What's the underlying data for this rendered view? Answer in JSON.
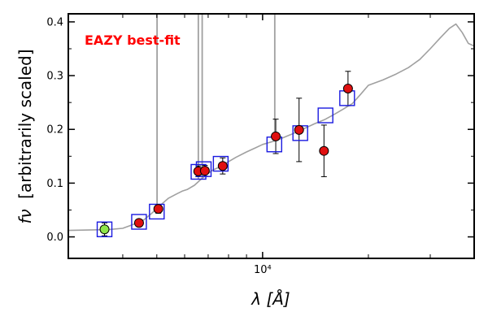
{
  "chart_data": {
    "type": "scatter",
    "title": "",
    "annotation": "EAZY best-fit",
    "xlabel": "λ [Å]",
    "ylabel_symbol": "fν",
    "ylabel_text": "[arbitrarily scaled]",
    "x_scale": "log",
    "xlim": [
      2800,
      40000
    ],
    "ylim": [
      -0.04,
      0.415
    ],
    "x_tick_labels": [
      {
        "value": 10000,
        "label": "10⁴"
      }
    ],
    "y_ticks": [
      0.0,
      0.1,
      0.2,
      0.3,
      0.4
    ],
    "y_tick_labels": [
      "0.0",
      "0.1",
      "0.2",
      "0.3",
      "0.4"
    ],
    "x_minor_ticks": [
      4000,
      5000,
      6000,
      7000,
      8000,
      9000,
      20000,
      30000
    ],
    "colors": {
      "template": "#a0a0a0",
      "model_box": "#1a1ae0",
      "detection": "#e01010",
      "highlight": "#8ee64a",
      "annotation": "#ff0000"
    },
    "template_spectrum": {
      "name": "best-fit template",
      "points": [
        [
          2800,
          0.012
        ],
        [
          3300,
          0.013
        ],
        [
          3700,
          0.014
        ],
        [
          4000,
          0.016
        ],
        [
          4200,
          0.021
        ],
        [
          4400,
          0.026
        ],
        [
          4600,
          0.032
        ],
        [
          4800,
          0.042
        ],
        [
          4950,
          0.05
        ],
        [
          5100,
          0.058
        ],
        [
          5400,
          0.072
        ],
        [
          5700,
          0.08
        ],
        [
          5900,
          0.085
        ],
        [
          6100,
          0.088
        ],
        [
          6400,
          0.096
        ],
        [
          6700,
          0.108
        ],
        [
          7000,
          0.118
        ],
        [
          7200,
          0.124
        ],
        [
          7600,
          0.131
        ],
        [
          8000,
          0.14
        ],
        [
          8400,
          0.148
        ],
        [
          9000,
          0.158
        ],
        [
          9500,
          0.165
        ],
        [
          10000,
          0.172
        ],
        [
          11000,
          0.18
        ],
        [
          12000,
          0.19
        ],
        [
          13000,
          0.2
        ],
        [
          14000,
          0.21
        ],
        [
          15000,
          0.218
        ],
        [
          16000,
          0.228
        ],
        [
          17000,
          0.238
        ],
        [
          18000,
          0.248
        ],
        [
          19000,
          0.265
        ],
        [
          20000,
          0.282
        ],
        [
          22000,
          0.292
        ],
        [
          24000,
          0.303
        ],
        [
          26000,
          0.315
        ],
        [
          28000,
          0.33
        ],
        [
          30000,
          0.35
        ],
        [
          32000,
          0.37
        ],
        [
          34000,
          0.388
        ],
        [
          35500,
          0.396
        ],
        [
          37000,
          0.38
        ],
        [
          38500,
          0.36
        ],
        [
          40000,
          0.355
        ]
      ]
    },
    "emission_lines": [
      {
        "x": 5008,
        "y_top": 0.415
      },
      {
        "x": 6563,
        "y_top": 0.415
      },
      {
        "x": 6731,
        "y_top": 0.415
      },
      {
        "x": 10830,
        "y_top": 0.415
      }
    ],
    "model_fluxes": {
      "name": "model fluxes",
      "points": [
        [
          3550,
          0.014
        ],
        [
          4450,
          0.028
        ],
        [
          5000,
          0.047
        ],
        [
          6570,
          0.121
        ],
        [
          6800,
          0.126
        ],
        [
          7600,
          0.136
        ],
        [
          10800,
          0.172
        ],
        [
          12800,
          0.193
        ],
        [
          15100,
          0.226
        ],
        [
          17400,
          0.258
        ]
      ]
    },
    "observed_fluxes": {
      "name": "observed photometry",
      "points": [
        {
          "x": 3550,
          "y": 0.014,
          "err": 0.012,
          "highlight": true
        },
        {
          "x": 4450,
          "y": 0.026,
          "err": 0.003
        },
        {
          "x": 5050,
          "y": 0.052,
          "err": 0.008
        },
        {
          "x": 6560,
          "y": 0.122,
          "err": 0.01
        },
        {
          "x": 6850,
          "y": 0.123,
          "err": 0.01
        },
        {
          "x": 7700,
          "y": 0.132,
          "err": 0.015
        },
        {
          "x": 10900,
          "y": 0.187,
          "err": 0.032
        },
        {
          "x": 12700,
          "y": 0.199,
          "err": 0.059
        },
        {
          "x": 14950,
          "y": 0.16,
          "err": 0.048
        },
        {
          "x": 17500,
          "y": 0.276,
          "err": 0.032
        }
      ]
    }
  }
}
